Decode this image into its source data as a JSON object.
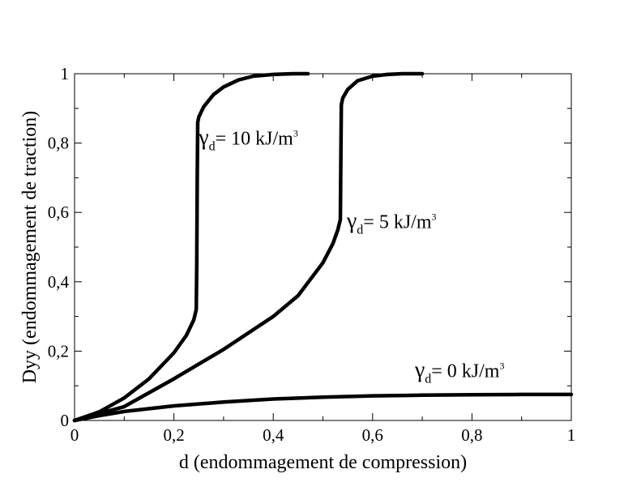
{
  "chart_data": {
    "type": "line",
    "xlabel": "d (endommagement de compression)",
    "ylabel": "Dyy (endommagement de traction)",
    "xlim": [
      0,
      1
    ],
    "ylim": [
      0,
      1
    ],
    "x_ticks": [
      0,
      0.2,
      0.4,
      0.6,
      0.8,
      1
    ],
    "x_tick_labels": [
      "0",
      "0,2",
      "0,4",
      "0,6",
      "0,8",
      "1"
    ],
    "y_ticks": [
      0,
      0.2,
      0.4,
      0.6,
      0.8,
      1
    ],
    "y_tick_labels": [
      "0",
      "0,2",
      "0,4",
      "0,6",
      "0,8",
      "1"
    ],
    "grid": false,
    "line_color": "#000000",
    "series": [
      {
        "x": [
          0,
          0.05,
          0.1,
          0.15,
          0.2,
          0.225,
          0.24,
          0.245,
          0.246,
          0.247,
          0.248,
          0.25,
          0.26,
          0.28,
          0.3,
          0.33,
          0.36,
          0.4,
          0.44,
          0.47
        ],
        "y": [
          0,
          0.025,
          0.065,
          0.12,
          0.195,
          0.245,
          0.29,
          0.32,
          0.45,
          0.7,
          0.86,
          0.875,
          0.905,
          0.94,
          0.962,
          0.982,
          0.993,
          0.998,
          1.0,
          1.0
        ]
      },
      {
        "x": [
          0,
          0.1,
          0.2,
          0.3,
          0.4,
          0.45,
          0.5,
          0.52,
          0.53,
          0.535,
          0.536,
          0.537,
          0.54,
          0.55,
          0.57,
          0.6,
          0.63,
          0.66,
          0.7
        ],
        "y": [
          0,
          0.04,
          0.12,
          0.205,
          0.3,
          0.36,
          0.455,
          0.51,
          0.55,
          0.58,
          0.75,
          0.91,
          0.93,
          0.955,
          0.98,
          0.993,
          0.998,
          1.0,
          1.0
        ]
      },
      {
        "x": [
          0,
          0.05,
          0.1,
          0.2,
          0.3,
          0.4,
          0.5,
          0.6,
          0.7,
          0.8,
          0.9,
          1.0
        ],
        "y": [
          0,
          0.014,
          0.026,
          0.042,
          0.053,
          0.062,
          0.067,
          0.071,
          0.073,
          0.074,
          0.075,
          0.075
        ]
      }
    ],
    "annotations": [
      {
        "symbol": "γ",
        "sub": "d",
        "text": "= 10 kJ/m",
        "sup": "3",
        "x": 0.25,
        "y": 0.795
      },
      {
        "symbol": "γ",
        "sub": "d",
        "text": "= 5 kJ/m",
        "sup": "3",
        "x": 0.548,
        "y": 0.555
      },
      {
        "symbol": "γ",
        "sub": "d",
        "text": "= 0 kJ/m",
        "sup": "3",
        "x": 0.685,
        "y": 0.125
      }
    ]
  }
}
